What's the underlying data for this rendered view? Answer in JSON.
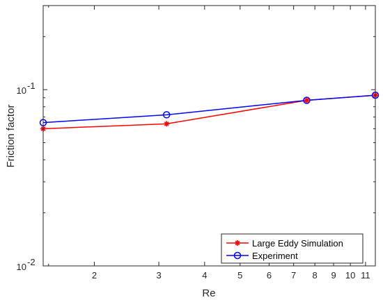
{
  "chart_data": {
    "type": "line",
    "xlabel": "Re",
    "ylabel": "Friction factor",
    "x_scale": "log",
    "y_scale": "log",
    "xlim": [
      1.45,
      11.7
    ],
    "ylim": [
      0.01,
      0.3
    ],
    "x_ticks": [
      2,
      3,
      4,
      5,
      6,
      7,
      8,
      9,
      10,
      11
    ],
    "x_tick_labels": [
      "2",
      "3",
      "4",
      "5",
      "6",
      "7",
      "8",
      "9",
      "10",
      "11"
    ],
    "y_ticks": [
      0.01,
      0.1
    ],
    "y_tick_labels": [
      {
        "base": "10",
        "exp": "-2"
      },
      {
        "base": "10",
        "exp": "-1"
      }
    ],
    "grid": false,
    "legend_position": "bottom-right",
    "series": [
      {
        "name": "Large Eddy Simulation",
        "color": "#ff0000",
        "marker": "asterisk",
        "x": [
          1.45,
          3.15,
          7.6,
          11.7
        ],
        "y": [
          0.06,
          0.064,
          0.087,
          0.093
        ]
      },
      {
        "name": "Experiment",
        "color": "#0000ff",
        "marker": "circle",
        "x": [
          1.45,
          3.15,
          7.6,
          11.7
        ],
        "y": [
          0.065,
          0.072,
          0.087,
          0.093
        ]
      }
    ]
  }
}
